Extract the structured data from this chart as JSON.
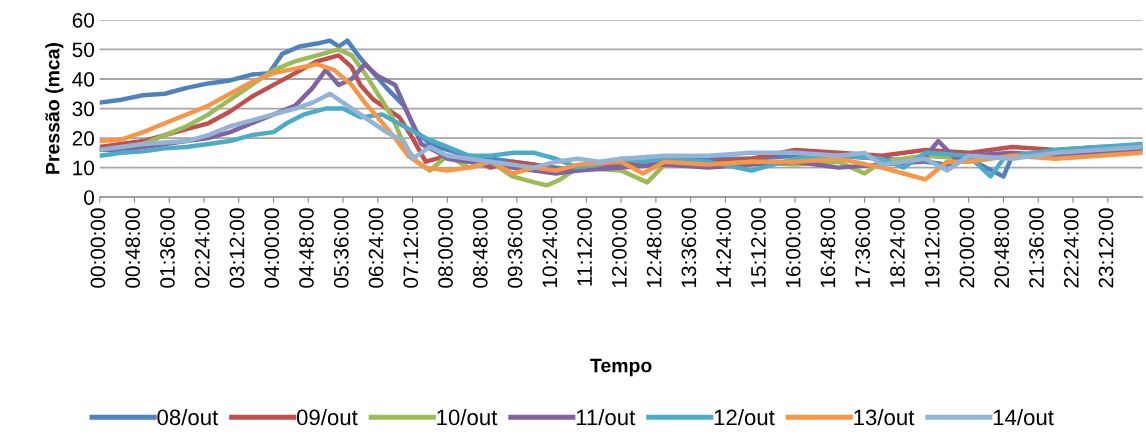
{
  "chart_data": {
    "type": "line",
    "xlabel": "Tempo",
    "ylabel": "Pressão (mca)",
    "xlim": [
      0,
      24
    ],
    "ylim": [
      0,
      60
    ],
    "yticks": [
      0,
      10,
      20,
      30,
      40,
      50,
      60
    ],
    "xticks": [
      {
        "value": 0,
        "label": "00:00:00"
      },
      {
        "value": 0.8,
        "label": "00:48:00"
      },
      {
        "value": 1.6,
        "label": "01:36:00"
      },
      {
        "value": 2.4,
        "label": "02:24:00"
      },
      {
        "value": 3.2,
        "label": "03:12:00"
      },
      {
        "value": 4.0,
        "label": "04:00:00"
      },
      {
        "value": 4.8,
        "label": "04:48:00"
      },
      {
        "value": 5.6,
        "label": "05:36:00"
      },
      {
        "value": 6.4,
        "label": "06:24:00"
      },
      {
        "value": 7.2,
        "label": "07:12:00"
      },
      {
        "value": 8.0,
        "label": "08:00:00"
      },
      {
        "value": 8.8,
        "label": "08:48:00"
      },
      {
        "value": 9.6,
        "label": "09:36:00"
      },
      {
        "value": 10.4,
        "label": "10:24:00"
      },
      {
        "value": 11.2,
        "label": "11:12:00"
      },
      {
        "value": 12.0,
        "label": "12:00:00"
      },
      {
        "value": 12.8,
        "label": "12:48:00"
      },
      {
        "value": 13.6,
        "label": "13:36:00"
      },
      {
        "value": 14.4,
        "label": "14:24:00"
      },
      {
        "value": 15.2,
        "label": "15:12:00"
      },
      {
        "value": 16.0,
        "label": "16:00:00"
      },
      {
        "value": 16.8,
        "label": "16:48:00"
      },
      {
        "value": 17.6,
        "label": "17:36:00"
      },
      {
        "value": 18.4,
        "label": "18:24:00"
      },
      {
        "value": 19.2,
        "label": "19:12:00"
      },
      {
        "value": 20.0,
        "label": "20:00:00"
      },
      {
        "value": 20.8,
        "label": "20:48:00"
      },
      {
        "value": 21.6,
        "label": "21:36:00"
      },
      {
        "value": 22.4,
        "label": "22:24:00"
      },
      {
        "value": 23.2,
        "label": "23:12:00"
      }
    ],
    "grid": "y",
    "legend": "bottom",
    "marker": "none",
    "line_style": "solid",
    "series": [
      {
        "name": "08/out",
        "color": "#4f81bd",
        "x": [
          0,
          0.5,
          1,
          1.5,
          2,
          2.5,
          3,
          3.5,
          3.9,
          4.2,
          4.6,
          5,
          5.3,
          5.5,
          5.7,
          6,
          6.3,
          6.6,
          7,
          7.3,
          7.6,
          8,
          8.5,
          9,
          9.5,
          10,
          10.5,
          11,
          11.5,
          12,
          13,
          14,
          15,
          16,
          17,
          18,
          19,
          19.5,
          20,
          20.8,
          21,
          22,
          23,
          24
        ],
        "values": [
          32,
          33,
          34.5,
          35,
          37,
          38.5,
          39.5,
          41.5,
          42,
          48.5,
          51,
          52,
          53,
          51,
          53,
          47,
          42,
          37,
          31,
          22,
          18,
          16,
          14,
          13,
          12,
          11,
          10,
          9,
          10,
          11,
          12,
          13,
          13,
          14,
          14,
          13,
          12,
          11,
          13,
          7,
          14,
          15,
          16,
          17
        ]
      },
      {
        "name": "09/out",
        "color": "#c0504d",
        "x": [
          0,
          0.5,
          1,
          1.5,
          2,
          2.5,
          3,
          3.5,
          4,
          4.5,
          5,
          5.5,
          5.8,
          6,
          6.3,
          6.6,
          6.9,
          7.2,
          7.5,
          8,
          8.5,
          9,
          9.5,
          10,
          10.5,
          11,
          12,
          13,
          14,
          15,
          16,
          17,
          18,
          19,
          20,
          21,
          22,
          23,
          24
        ],
        "values": [
          17,
          18,
          19,
          21,
          23,
          25,
          29,
          34,
          38,
          42,
          46,
          48,
          44,
          38,
          33,
          30,
          27,
          20,
          12,
          14,
          13,
          10,
          12,
          11,
          9,
          10,
          12,
          11,
          12,
          13,
          16,
          15,
          14,
          16,
          15,
          17,
          16,
          17,
          17
        ]
      },
      {
        "name": "10/out",
        "color": "#9bbb59",
        "x": [
          0,
          0.5,
          1,
          1.5,
          2,
          2.5,
          3,
          3.5,
          4,
          4.5,
          5,
          5.5,
          5.8,
          6.1,
          6.4,
          6.7,
          7,
          7.3,
          7.6,
          8,
          8.5,
          9,
          9.5,
          10,
          10.3,
          10.6,
          11,
          12,
          12.6,
          13,
          14,
          15,
          16,
          17,
          17.6,
          18,
          19,
          20,
          21,
          22
        ],
        "values": [
          16,
          17,
          18,
          21,
          24,
          28,
          33,
          38,
          43,
          46,
          48,
          50,
          48,
          42,
          35,
          28,
          18,
          12,
          9,
          14,
          10,
          12,
          7,
          5,
          4,
          6,
          10,
          9,
          5,
          11,
          11,
          12,
          11,
          12,
          8,
          12,
          14,
          13,
          14,
          15
        ]
      },
      {
        "name": "11/out",
        "color": "#8064a2",
        "x": [
          0,
          0.5,
          1,
          1.5,
          2,
          2.5,
          3,
          3.5,
          4,
          4.5,
          4.9,
          5.2,
          5.5,
          5.8,
          6.1,
          6.4,
          6.8,
          7.1,
          7.4,
          7.8,
          8,
          8.5,
          9,
          9.5,
          10,
          10.5,
          11,
          12,
          13,
          14,
          15,
          16,
          17,
          18,
          18.9,
          19.3,
          19.7,
          20,
          21,
          22,
          23,
          24
        ],
        "values": [
          16,
          16,
          17,
          18,
          19,
          20,
          22,
          25,
          28,
          31,
          37,
          43,
          38,
          40,
          45,
          41,
          38,
          28,
          18,
          15,
          13,
          12,
          11,
          10,
          9,
          8,
          9,
          10,
          11,
          10,
          11,
          12,
          10,
          11,
          12,
          19,
          13,
          14,
          15,
          14,
          15,
          16
        ]
      },
      {
        "name": "12/out",
        "color": "#4bacc6",
        "x": [
          0,
          0.5,
          1,
          1.5,
          2,
          2.5,
          3,
          3.5,
          4,
          4.3,
          4.7,
          5.2,
          5.6,
          6,
          6.5,
          7,
          7.5,
          8,
          8.5,
          9,
          9.5,
          10,
          10.5,
          11,
          11.5,
          12,
          12.5,
          13,
          14,
          15,
          16,
          17,
          18,
          18.5,
          19,
          20,
          20.5,
          20.8,
          21,
          22,
          23,
          24
        ],
        "values": [
          14,
          15,
          15.5,
          16.5,
          17,
          18,
          19,
          21,
          22,
          25,
          28,
          30,
          30,
          27,
          28,
          24,
          20,
          17,
          14,
          14,
          15,
          15,
          13,
          10,
          11,
          13,
          12,
          13,
          12,
          9,
          13,
          14,
          13,
          10,
          15,
          14,
          7,
          13,
          14,
          16,
          17,
          18
        ]
      },
      {
        "name": "13/out",
        "color": "#f79646",
        "x": [
          0,
          0.5,
          1,
          1.5,
          2,
          2.5,
          3,
          3.5,
          4,
          4.5,
          5,
          5.4,
          5.8,
          6.1,
          6.4,
          6.8,
          7.1,
          7.5,
          8,
          8.5,
          9,
          9.5,
          10,
          10.5,
          11,
          12,
          12.5,
          13,
          14,
          15,
          16,
          17,
          18,
          18.5,
          19,
          19.5,
          20,
          21,
          22,
          23,
          24
        ],
        "values": [
          19,
          19.5,
          22,
          25,
          28,
          31,
          35,
          39,
          42,
          43.5,
          45,
          43,
          38,
          32,
          27,
          20,
          14,
          10,
          9,
          10,
          12,
          8,
          10,
          9,
          11,
          12,
          8,
          12,
          11,
          12,
          12,
          13,
          10,
          8,
          6,
          12,
          12,
          14,
          13,
          14,
          15
        ]
      },
      {
        "name": "14/out",
        "color": "#95b3d7",
        "x": [
          0,
          0.5,
          1,
          1.5,
          2,
          2.5,
          3,
          3.5,
          4,
          4.5,
          4.9,
          5.3,
          5.6,
          6,
          6.3,
          6.6,
          7,
          7.2,
          7.6,
          8,
          8.5,
          9,
          9.5,
          10,
          10.5,
          11,
          11.5,
          12,
          13,
          14,
          15,
          16,
          17,
          17.6,
          18,
          19,
          19.5,
          20,
          21,
          22,
          23,
          24
        ],
        "values": [
          16,
          17,
          18,
          18.5,
          19,
          21,
          24,
          26,
          28,
          30,
          32,
          35,
          32,
          28,
          25,
          22,
          19,
          13,
          17,
          14,
          13,
          12,
          11,
          10,
          12,
          13,
          12,
          13,
          14,
          14,
          15,
          15,
          14,
          15,
          11,
          13,
          9,
          14,
          13,
          15,
          16,
          17
        ]
      }
    ]
  }
}
